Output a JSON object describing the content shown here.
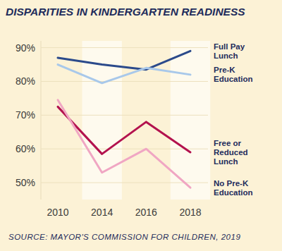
{
  "chart_data": {
    "type": "line",
    "title": "DISPARITIES IN KINDERGARTEN READINESS",
    "source": "SOURCE: MAYOR'S COMMISSION FOR CHILDREN, 2019",
    "categories": [
      "2010",
      "2014",
      "2016",
      "2018"
    ],
    "series": [
      {
        "name": "Full Pay Lunch",
        "color": "#2b4a8b",
        "values": [
          87,
          85,
          83.5,
          89
        ]
      },
      {
        "name": "Pre-K Education",
        "color": "#a8c8ea",
        "values": [
          85,
          79.5,
          84,
          82
        ]
      },
      {
        "name": "Free or Reduced Lunch",
        "color": "#b3124e",
        "values": [
          72.5,
          58.5,
          68,
          59
        ]
      },
      {
        "name": "No Pre-K Education",
        "color": "#f0a6c3",
        "values": [
          74.5,
          53,
          60,
          48.5
        ]
      }
    ],
    "ylim": [
      45,
      92
    ],
    "yticks": [
      {
        "value": 50,
        "label": "50%"
      },
      {
        "value": 60,
        "label": "60%"
      },
      {
        "value": 70,
        "label": "70%"
      },
      {
        "value": 80,
        "label": "80%"
      },
      {
        "value": 90,
        "label": "90%"
      }
    ],
    "grid": true
  }
}
